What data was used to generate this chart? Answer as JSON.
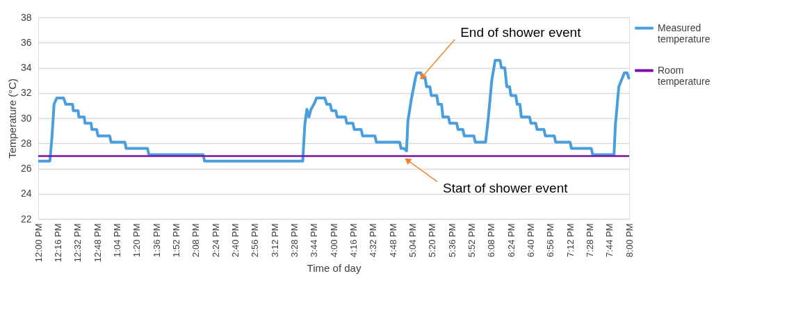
{
  "chart_data": {
    "type": "line",
    "xlabel": "Time of day",
    "ylabel": "Temperature (°C)",
    "ylim": [
      22,
      38
    ],
    "yticks": [
      22,
      24,
      26,
      28,
      30,
      32,
      34,
      36,
      38
    ],
    "xlim": [
      12,
      20
    ],
    "xticks": [
      {
        "value": 12,
        "label": "12:00 PM"
      },
      {
        "value": 12.2667,
        "label": "12:16 PM"
      },
      {
        "value": 12.5333,
        "label": "12:32 PM"
      },
      {
        "value": 12.8,
        "label": "12:48 PM"
      },
      {
        "value": 13.0667,
        "label": "1:04 PM"
      },
      {
        "value": 13.3333,
        "label": "1:20 PM"
      },
      {
        "value": 13.6,
        "label": "1:36 PM"
      },
      {
        "value": 13.8667,
        "label": "1:52 PM"
      },
      {
        "value": 14.1333,
        "label": "2:08 PM"
      },
      {
        "value": 14.4,
        "label": "2:24 PM"
      },
      {
        "value": 14.6667,
        "label": "2:40 PM"
      },
      {
        "value": 14.9333,
        "label": "2:56 PM"
      },
      {
        "value": 15.2,
        "label": "3:12 PM"
      },
      {
        "value": 15.4667,
        "label": "3:28 PM"
      },
      {
        "value": 15.7333,
        "label": "3:44 PM"
      },
      {
        "value": 16,
        "label": "4:00 PM"
      },
      {
        "value": 16.2667,
        "label": "4:16 PM"
      },
      {
        "value": 16.5333,
        "label": "4:32 PM"
      },
      {
        "value": 16.8,
        "label": "4:48 PM"
      },
      {
        "value": 17.0667,
        "label": "5:04 PM"
      },
      {
        "value": 17.3333,
        "label": "5:20 PM"
      },
      {
        "value": 17.6,
        "label": "5:36 PM"
      },
      {
        "value": 17.8667,
        "label": "5:52 PM"
      },
      {
        "value": 18.1333,
        "label": "6:08 PM"
      },
      {
        "value": 18.4,
        "label": "6:24 PM"
      },
      {
        "value": 18.6667,
        "label": "6:40 PM"
      },
      {
        "value": 18.9333,
        "label": "6:56 PM"
      },
      {
        "value": 19.2,
        "label": "7:12 PM"
      },
      {
        "value": 19.4667,
        "label": "7:28 PM"
      },
      {
        "value": 19.7333,
        "label": "7:44 PM"
      },
      {
        "value": 20,
        "label": "8:00 PM"
      }
    ],
    "grid": "y",
    "legend": "right",
    "marker": "none",
    "line_style": "solid",
    "series": [
      {
        "name": "Measured temperature",
        "color": "#4a9ede",
        "x": [
          12.0,
          12.158,
          12.186,
          12.214,
          12.251,
          12.344,
          12.372,
          12.465,
          12.474,
          12.54,
          12.549,
          12.623,
          12.633,
          12.716,
          12.726,
          12.791,
          12.809,
          12.967,
          12.986,
          13.172,
          13.191,
          13.479,
          13.498,
          14.233,
          14.251,
          15.581,
          15.609,
          15.637,
          15.665,
          15.693,
          15.74,
          15.767,
          15.879,
          15.907,
          15.953,
          15.972,
          16.028,
          16.047,
          16.158,
          16.177,
          16.26,
          16.279,
          16.372,
          16.391,
          16.558,
          16.577,
          16.893,
          16.912,
          16.949,
          16.986,
          17.005,
          17.051,
          17.107,
          17.126,
          17.181,
          17.2,
          17.237,
          17.256,
          17.302,
          17.321,
          17.395,
          17.414,
          17.46,
          17.479,
          17.553,
          17.572,
          17.665,
          17.684,
          17.749,
          17.767,
          17.898,
          17.916,
          18.056,
          18.093,
          18.14,
          18.186,
          18.251,
          18.27,
          18.316,
          18.344,
          18.381,
          18.4,
          18.465,
          18.484,
          18.521,
          18.54,
          18.651,
          18.67,
          18.735,
          18.753,
          18.847,
          18.865,
          18.986,
          19.005,
          19.2,
          19.219,
          19.488,
          19.507,
          19.795,
          19.814,
          19.86,
          19.935,
          19.972,
          20.0
        ],
        "values": [
          26.6,
          26.6,
          28.5,
          31.1,
          31.6,
          31.6,
          31.1,
          31.1,
          30.6,
          30.6,
          30.1,
          30.1,
          29.6,
          29.6,
          29.1,
          29.1,
          28.6,
          28.6,
          28.1,
          28.1,
          27.6,
          27.6,
          27.1,
          27.1,
          26.6,
          26.6,
          29.5,
          30.7,
          30.1,
          30.7,
          31.2,
          31.6,
          31.6,
          31.1,
          31.1,
          30.6,
          30.6,
          30.1,
          30.1,
          29.6,
          29.6,
          29.1,
          29.1,
          28.6,
          28.6,
          28.1,
          28.1,
          27.6,
          27.6,
          27.4,
          29.8,
          31.5,
          33.2,
          33.6,
          33.6,
          33.2,
          33.2,
          32.5,
          32.5,
          31.8,
          31.8,
          31.1,
          31.1,
          30.1,
          30.1,
          29.6,
          29.6,
          29.1,
          29.1,
          28.6,
          28.6,
          28.1,
          28.1,
          30.0,
          33.0,
          34.6,
          34.6,
          34.0,
          34.0,
          32.5,
          32.5,
          31.8,
          31.8,
          31.1,
          31.1,
          30.1,
          30.1,
          29.6,
          29.6,
          29.1,
          29.1,
          28.6,
          28.6,
          28.1,
          28.1,
          27.6,
          27.6,
          27.1,
          27.1,
          29.5,
          32.5,
          33.6,
          33.6,
          33.1
        ]
      },
      {
        "name": "Room temperature",
        "color": "#7b0fa8",
        "x": [
          12,
          20
        ],
        "values": [
          27.0,
          27.0
        ]
      }
    ],
    "annotations": [
      {
        "text": "End of shower event",
        "x": 17.15,
        "y": 33.6
      },
      {
        "text": "Start of shower event",
        "x": 16.96,
        "y": 27.0
      }
    ]
  }
}
